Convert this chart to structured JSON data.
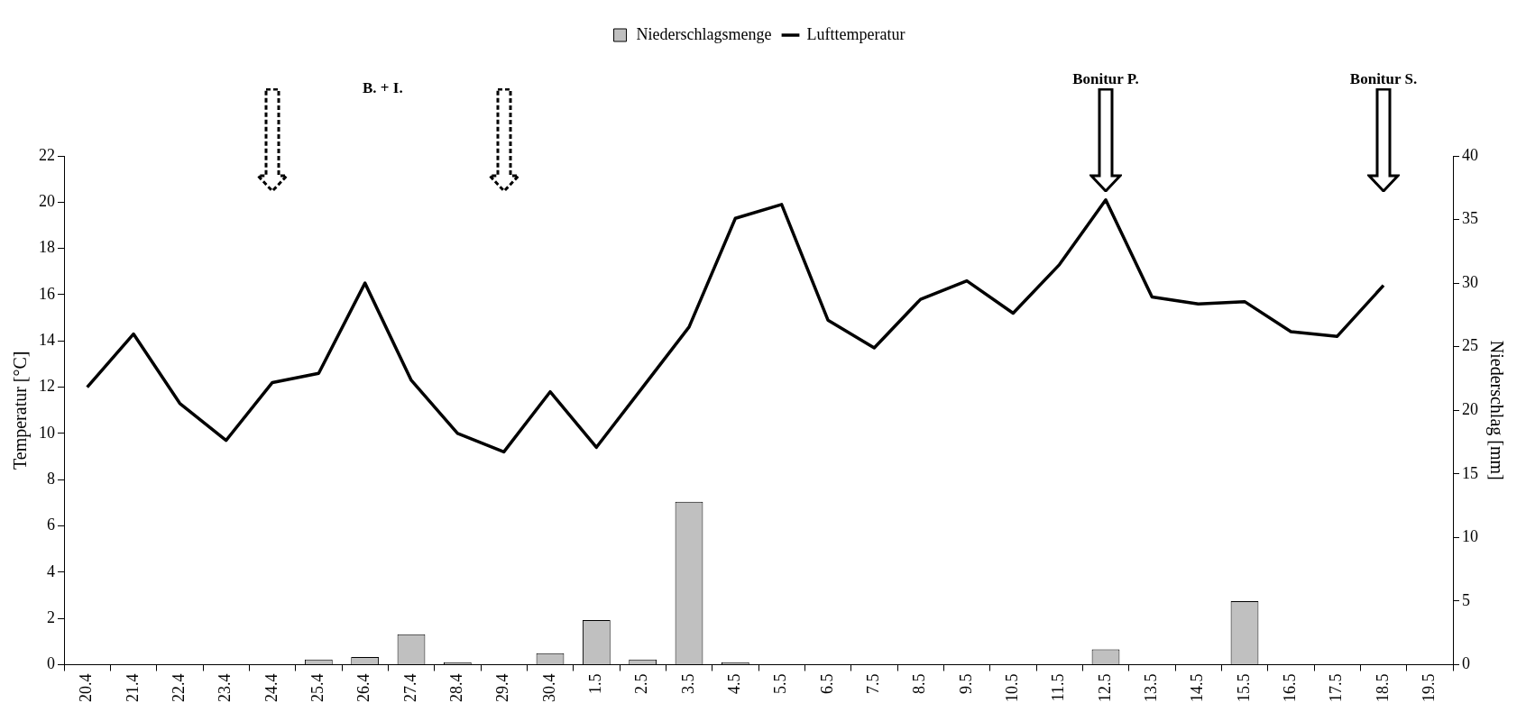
{
  "chart_data": {
    "type": "bar",
    "categories": [
      "20.4",
      "21.4",
      "22.4",
      "23.4",
      "24.4",
      "25.4",
      "26.4",
      "27.4",
      "28.4",
      "29.4",
      "30.4",
      "1.5",
      "2.5",
      "3.5",
      "4.5",
      "5.5",
      "6.5",
      "7.5",
      "8.5",
      "9.5",
      "10.5",
      "11.5",
      "12.5",
      "13.5",
      "14.5",
      "15.5",
      "16.5",
      "17.5",
      "18.5",
      "19.5"
    ],
    "series": [
      {
        "name": "Niederschlagsmenge",
        "axis": "y2",
        "color": "#c0c0c0",
        "values": [
          0,
          0,
          0,
          0,
          0,
          0.4,
          0.6,
          2.4,
          0.2,
          0,
          0.9,
          3.5,
          0.4,
          12.8,
          0.2,
          0,
          0,
          0,
          0,
          0,
          0,
          0,
          1.2,
          0,
          0,
          5.0,
          0,
          0,
          0,
          0
        ]
      },
      {
        "name": "Lufttemperatur",
        "type": "line",
        "axis": "y",
        "color": "#000000",
        "values": [
          12,
          14.3,
          11.3,
          9.7,
          12.2,
          12.6,
          16.5,
          12.3,
          10.0,
          9.2,
          11.8,
          9.4,
          12.0,
          14.6,
          19.3,
          19.9,
          14.9,
          13.7,
          15.8,
          16.6,
          15.2,
          17.3,
          20.1,
          15.9,
          15.6,
          15.7,
          14.4,
          14.2,
          16.4,
          null
        ]
      }
    ],
    "ylabel": "Temperatur [°C]",
    "y2label": "Niederschlag [mm]",
    "ylim": [
      0,
      22
    ],
    "yticks": [
      0,
      2,
      4,
      6,
      8,
      10,
      12,
      14,
      16,
      18,
      20,
      22
    ],
    "y2lim": [
      0,
      40
    ],
    "y2ticks": [
      0,
      5,
      10,
      15,
      20,
      25,
      30,
      35,
      40
    ],
    "legend": "top",
    "grid": false,
    "marker": "none",
    "line_style": "solid",
    "annotations": [
      "B. + I.",
      "Bonitur P.",
      "Bonitur S."
    ]
  }
}
